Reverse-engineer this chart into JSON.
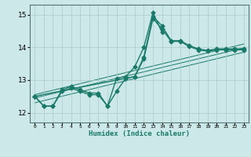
{
  "xlabel": "Humidex (Indice chaleur)",
  "ylabel": "",
  "xlim": [
    -0.5,
    23.5
  ],
  "ylim": [
    11.7,
    15.3
  ],
  "yticks": [
    12,
    13,
    14,
    15
  ],
  "xtick_labels": [
    "0",
    "1",
    "2",
    "3",
    "4",
    "5",
    "6",
    "7",
    "8",
    "9",
    "10",
    "11",
    "12",
    "13",
    "14",
    "15",
    "16",
    "17",
    "18",
    "19",
    "20",
    "21",
    "22",
    "23"
  ],
  "bg_color": "#cce8e8",
  "grid_color": "#aacccc",
  "line_color": "#1a7a6a",
  "series": {
    "line1": [
      12.5,
      12.2,
      12.2,
      12.7,
      12.8,
      12.7,
      12.6,
      12.6,
      12.2,
      12.65,
      13.05,
      13.1,
      13.7,
      14.95,
      14.65,
      14.2,
      14.2,
      14.05,
      13.95,
      13.9,
      13.95,
      13.95,
      13.95,
      13.95
    ],
    "line2": [
      12.5,
      12.2,
      12.2,
      12.65,
      12.75,
      12.65,
      12.55,
      12.55,
      12.2,
      13.05,
      13.1,
      13.4,
      14.0,
      15.05,
      14.45,
      null,
      null,
      null,
      null,
      null,
      null,
      null,
      null,
      null
    ],
    "line3": [
      12.5,
      null,
      null,
      null,
      null,
      null,
      null,
      null,
      null,
      null,
      13.05,
      13.1,
      13.65,
      14.88,
      14.55,
      14.18,
      14.18,
      14.02,
      13.92,
      13.88,
      13.92,
      13.92,
      13.92,
      13.92
    ],
    "line_reg1": {
      "x0": 0,
      "x1": 23,
      "y0": 12.45,
      "y1": 13.98
    },
    "line_reg2": {
      "x0": 0,
      "x1": 23,
      "y0": 12.3,
      "y1": 13.85
    },
    "line_reg3": {
      "x0": 0,
      "x1": 23,
      "y0": 12.55,
      "y1": 14.1
    }
  },
  "marker": "D",
  "markersize": 2.5,
  "linewidth": 1.0
}
